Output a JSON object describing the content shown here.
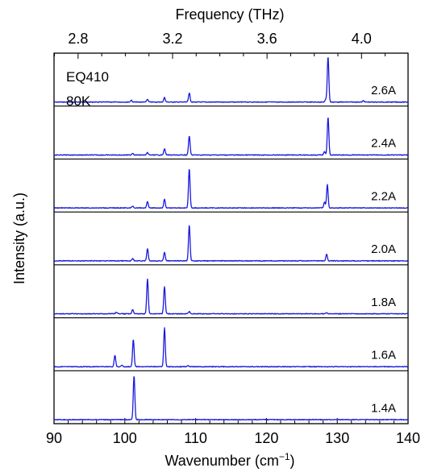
{
  "chart_data": {
    "type": "line",
    "title": "",
    "sample_label": "EQ410",
    "temperature_label": "80K",
    "xlabel": "Wavenumber (cm",
    "xlabel_sup": "−1",
    "xlabel_end": ")",
    "ylabel": "Intensity (a.u.)",
    "xlim": [
      90,
      140
    ],
    "x_ticks": [
      90,
      100,
      110,
      120,
      130,
      140
    ],
    "x_tick_labels": [
      "90",
      "100",
      "110",
      "120",
      "130",
      "140"
    ],
    "x2label": "Frequency (THz)",
    "x2_ticks": [
      2.8,
      3.2,
      3.6,
      4.0
    ],
    "x2_tick_labels": [
      "2.8",
      "3.2",
      "3.6",
      "4.0"
    ],
    "x2_conversion_thz_per_cm1": 0.0299792,
    "line_color": "#1a1adc",
    "y_ticks": false,
    "series": [
      {
        "name": "2.6A",
        "peaks": [
          [
            100.9,
            0.04
          ],
          [
            103.2,
            0.06
          ],
          [
            105.6,
            0.1
          ],
          [
            109.1,
            0.2
          ],
          [
            128.4,
            0.06
          ],
          [
            128.7,
            1.0
          ],
          [
            133.7,
            0.03
          ]
        ]
      },
      {
        "name": "2.4A",
        "peaks": [
          [
            101.1,
            0.04
          ],
          [
            103.2,
            0.05
          ],
          [
            105.6,
            0.14
          ],
          [
            109.1,
            0.42
          ],
          [
            128.2,
            0.08
          ],
          [
            128.7,
            0.83
          ]
        ]
      },
      {
        "name": "2.2A",
        "peaks": [
          [
            101.1,
            0.04
          ],
          [
            103.2,
            0.14
          ],
          [
            105.6,
            0.19
          ],
          [
            109.1,
            0.86
          ],
          [
            128.2,
            0.13
          ],
          [
            128.6,
            0.51
          ]
        ]
      },
      {
        "name": "2.0A",
        "peaks": [
          [
            101.1,
            0.05
          ],
          [
            103.2,
            0.26
          ],
          [
            105.6,
            0.19
          ],
          [
            109.1,
            0.79
          ],
          [
            128.5,
            0.14
          ]
        ]
      },
      {
        "name": "1.8A",
        "peaks": [
          [
            98.8,
            0.03
          ],
          [
            101.1,
            0.09
          ],
          [
            103.2,
            0.77
          ],
          [
            105.6,
            0.6
          ],
          [
            109.1,
            0.05
          ],
          [
            128.5,
            0.02
          ]
        ]
      },
      {
        "name": "1.6A",
        "peaks": [
          [
            98.6,
            0.25
          ],
          [
            99.6,
            0.04
          ],
          [
            101.2,
            0.6
          ],
          [
            105.6,
            0.85
          ],
          [
            108.9,
            0.02
          ]
        ]
      },
      {
        "name": "1.4A",
        "peaks": [
          [
            101.3,
            0.97
          ]
        ]
      }
    ]
  }
}
